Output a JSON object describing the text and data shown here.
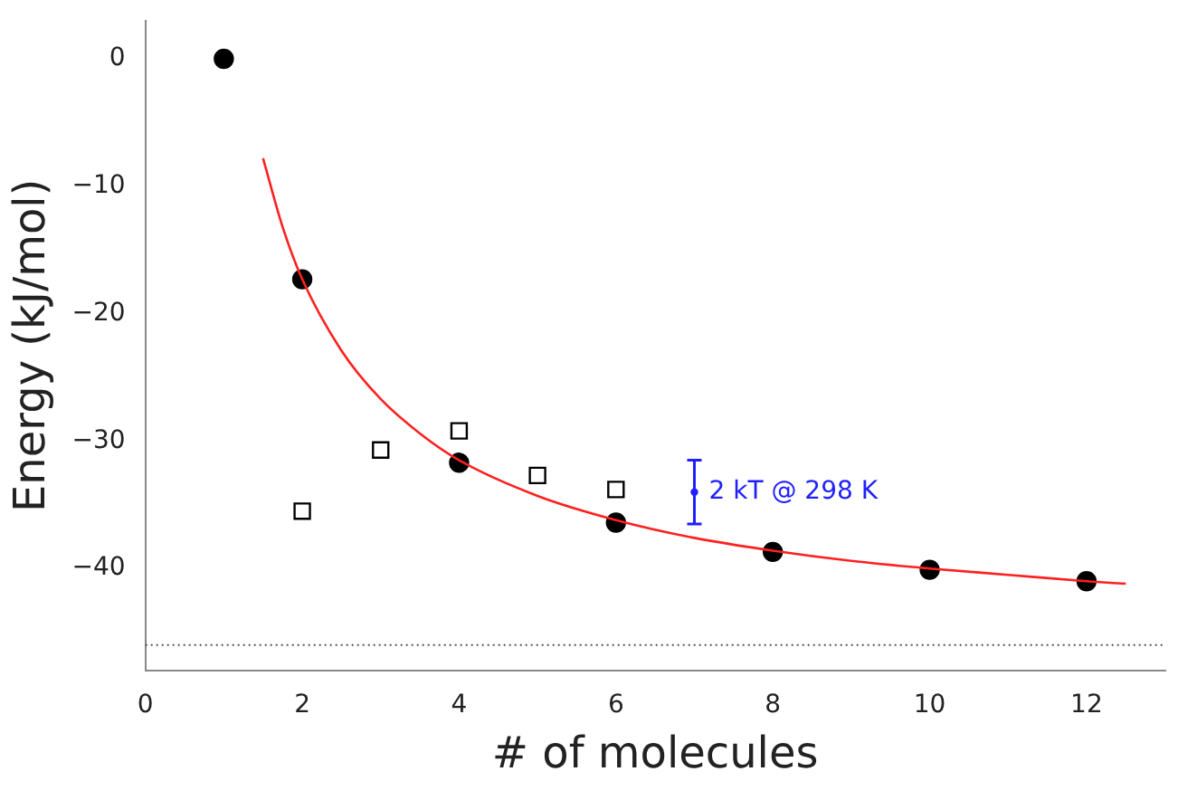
{
  "chart_data": {
    "type": "scatter",
    "xlabel": "# of molecules",
    "ylabel": "Energy (kJ/mol)",
    "xlim": [
      0,
      13
    ],
    "xticks": [
      0,
      2,
      4,
      6,
      8,
      10,
      12
    ],
    "ylim": [
      -48,
      3
    ],
    "yticks": [
      -40,
      -30,
      -20,
      -10,
      0
    ],
    "grid": false,
    "legend": false,
    "series": [
      {
        "type": "line",
        "color": "#ff2020",
        "marker": "none",
        "line_style": "solid",
        "x": [
          1.5,
          1.75,
          2,
          2.5,
          3,
          3.5,
          4,
          5,
          6,
          7,
          8,
          9,
          10,
          11,
          12,
          12.5
        ],
        "values": [
          -7.8,
          -13.2,
          -17.3,
          -22.9,
          -26.7,
          -29.4,
          -31.5,
          -34.3,
          -36.2,
          -37.6,
          -38.6,
          -39.4,
          -40.0,
          -40.5,
          -41.0,
          -41.2
        ]
      },
      {
        "type": "scatter",
        "color": "#000000",
        "marker": "circle",
        "x": [
          1,
          2,
          4,
          6,
          8,
          10,
          12
        ],
        "values": [
          0,
          -17.3,
          -31.7,
          -36.4,
          -38.7,
          -40.1,
          -41.0
        ]
      },
      {
        "type": "scatter",
        "color": "#000000",
        "marker": "square",
        "x": [
          2,
          3,
          4,
          5,
          6
        ],
        "values": [
          -35.5,
          -30.7,
          -29.2,
          -32.7,
          -33.8
        ]
      },
      {
        "type": "scatter",
        "color": "#2020ff",
        "x": [
          7
        ],
        "values": [
          -34
        ],
        "errors": [
          2.5
        ]
      }
    ],
    "ref_lines": [
      {
        "axis": "y",
        "value": -46,
        "color": "#555555",
        "line_style": "dotted"
      }
    ],
    "annotations": [
      {
        "text": "2 kT @ 298 K",
        "x": 7,
        "y": -34
      }
    ]
  }
}
